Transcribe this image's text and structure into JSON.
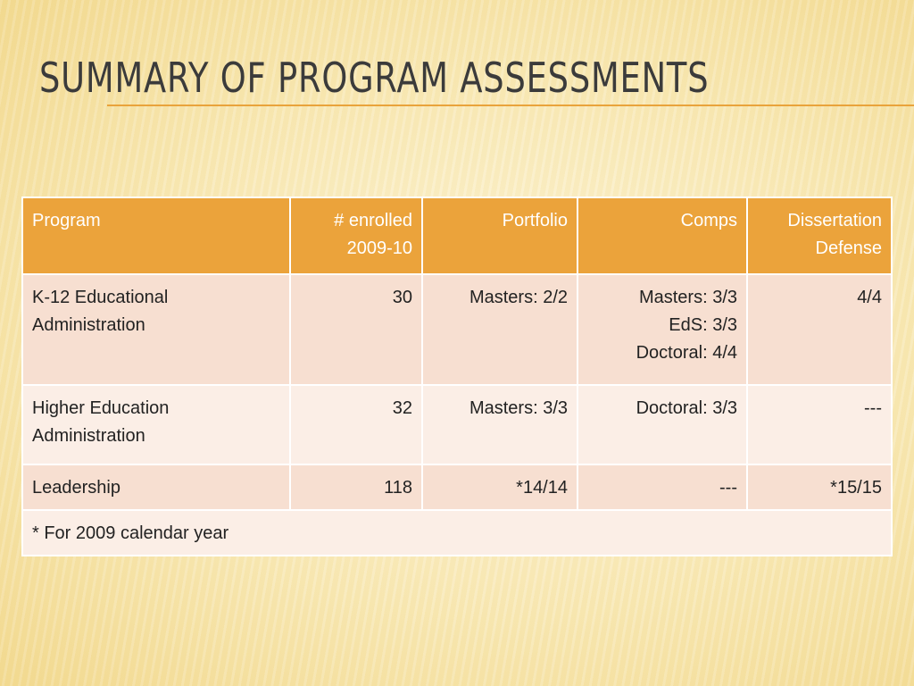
{
  "slide": {
    "title": "Summary of Program Assessments"
  },
  "table": {
    "headers": {
      "program": "Program",
      "enrolled_line1": "# enrolled",
      "enrolled_line2": "2009-10",
      "portfolio": "Portfolio",
      "comps": "Comps",
      "dissertation_line1": "Dissertation",
      "dissertation_line2": "Defense"
    },
    "rows": [
      {
        "program_line1": "K-12 Educational",
        "program_line2": "Administration",
        "enrolled": "30",
        "portfolio": "Masters: 2/2",
        "comps": [
          "Masters: 3/3",
          "EdS: 3/3",
          "Doctoral: 4/4"
        ],
        "dissertation": "4/4"
      },
      {
        "program_line1": "Higher Education",
        "program_line2": "Administration",
        "enrolled": "32",
        "portfolio": "Masters: 3/3",
        "comps": [
          "Doctoral: 3/3"
        ],
        "dissertation": "---"
      },
      {
        "program_line1": "Leadership",
        "enrolled": "118",
        "portfolio": "*14/14",
        "comps": [
          "---"
        ],
        "dissertation": "*15/15"
      }
    ],
    "footnote": "* For 2009 calendar year"
  },
  "colors": {
    "header_bg": "#eba33b",
    "row_odd_bg": "#f7dfd1",
    "row_even_bg": "#fbeee6",
    "title_rule": "#e9a33b"
  }
}
